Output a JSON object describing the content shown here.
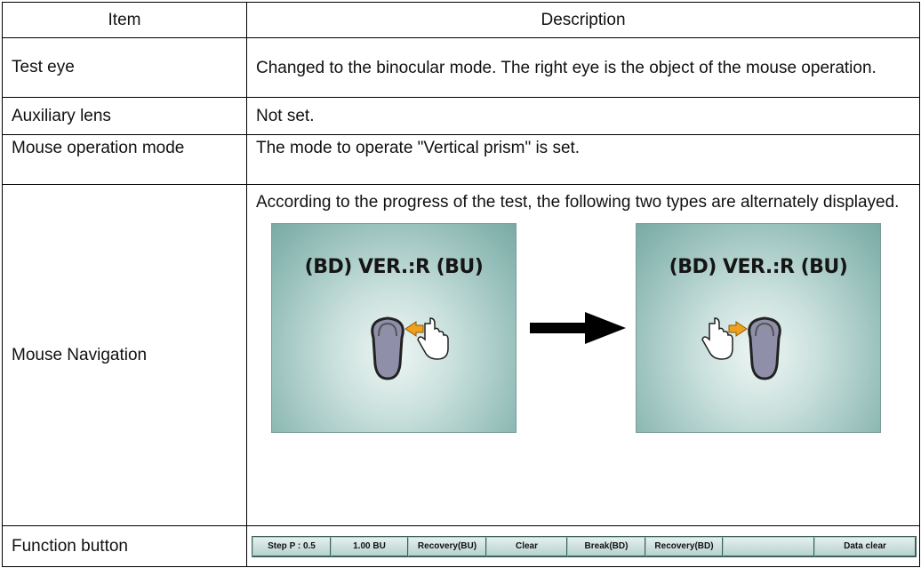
{
  "table": {
    "header": [
      "Item",
      "Description"
    ],
    "rows": [
      {
        "item": "Test eye",
        "description": "Changed to the binocular mode.  The right eye is the object of the mouse operation."
      },
      {
        "item": "Auxiliary lens",
        "description": "Not set."
      },
      {
        "item": "Mouse operation mode",
        "description": "The mode to operate \"Vertical prism\" is set."
      },
      {
        "item": "Mouse Navigation",
        "description": "According to the progress of the test, the following two types are alternately displayed.",
        "panels": [
          "(BD) VER.:R (BU)",
          "(BD) VER.:R (BU)"
        ]
      },
      {
        "item": "Function button",
        "buttons": [
          "Step P : 0.5",
          "1.00 BU",
          "Recovery(BU)",
          "Clear",
          "Break(BD)",
          "Recovery(BD)",
          "Data clear"
        ]
      }
    ]
  }
}
